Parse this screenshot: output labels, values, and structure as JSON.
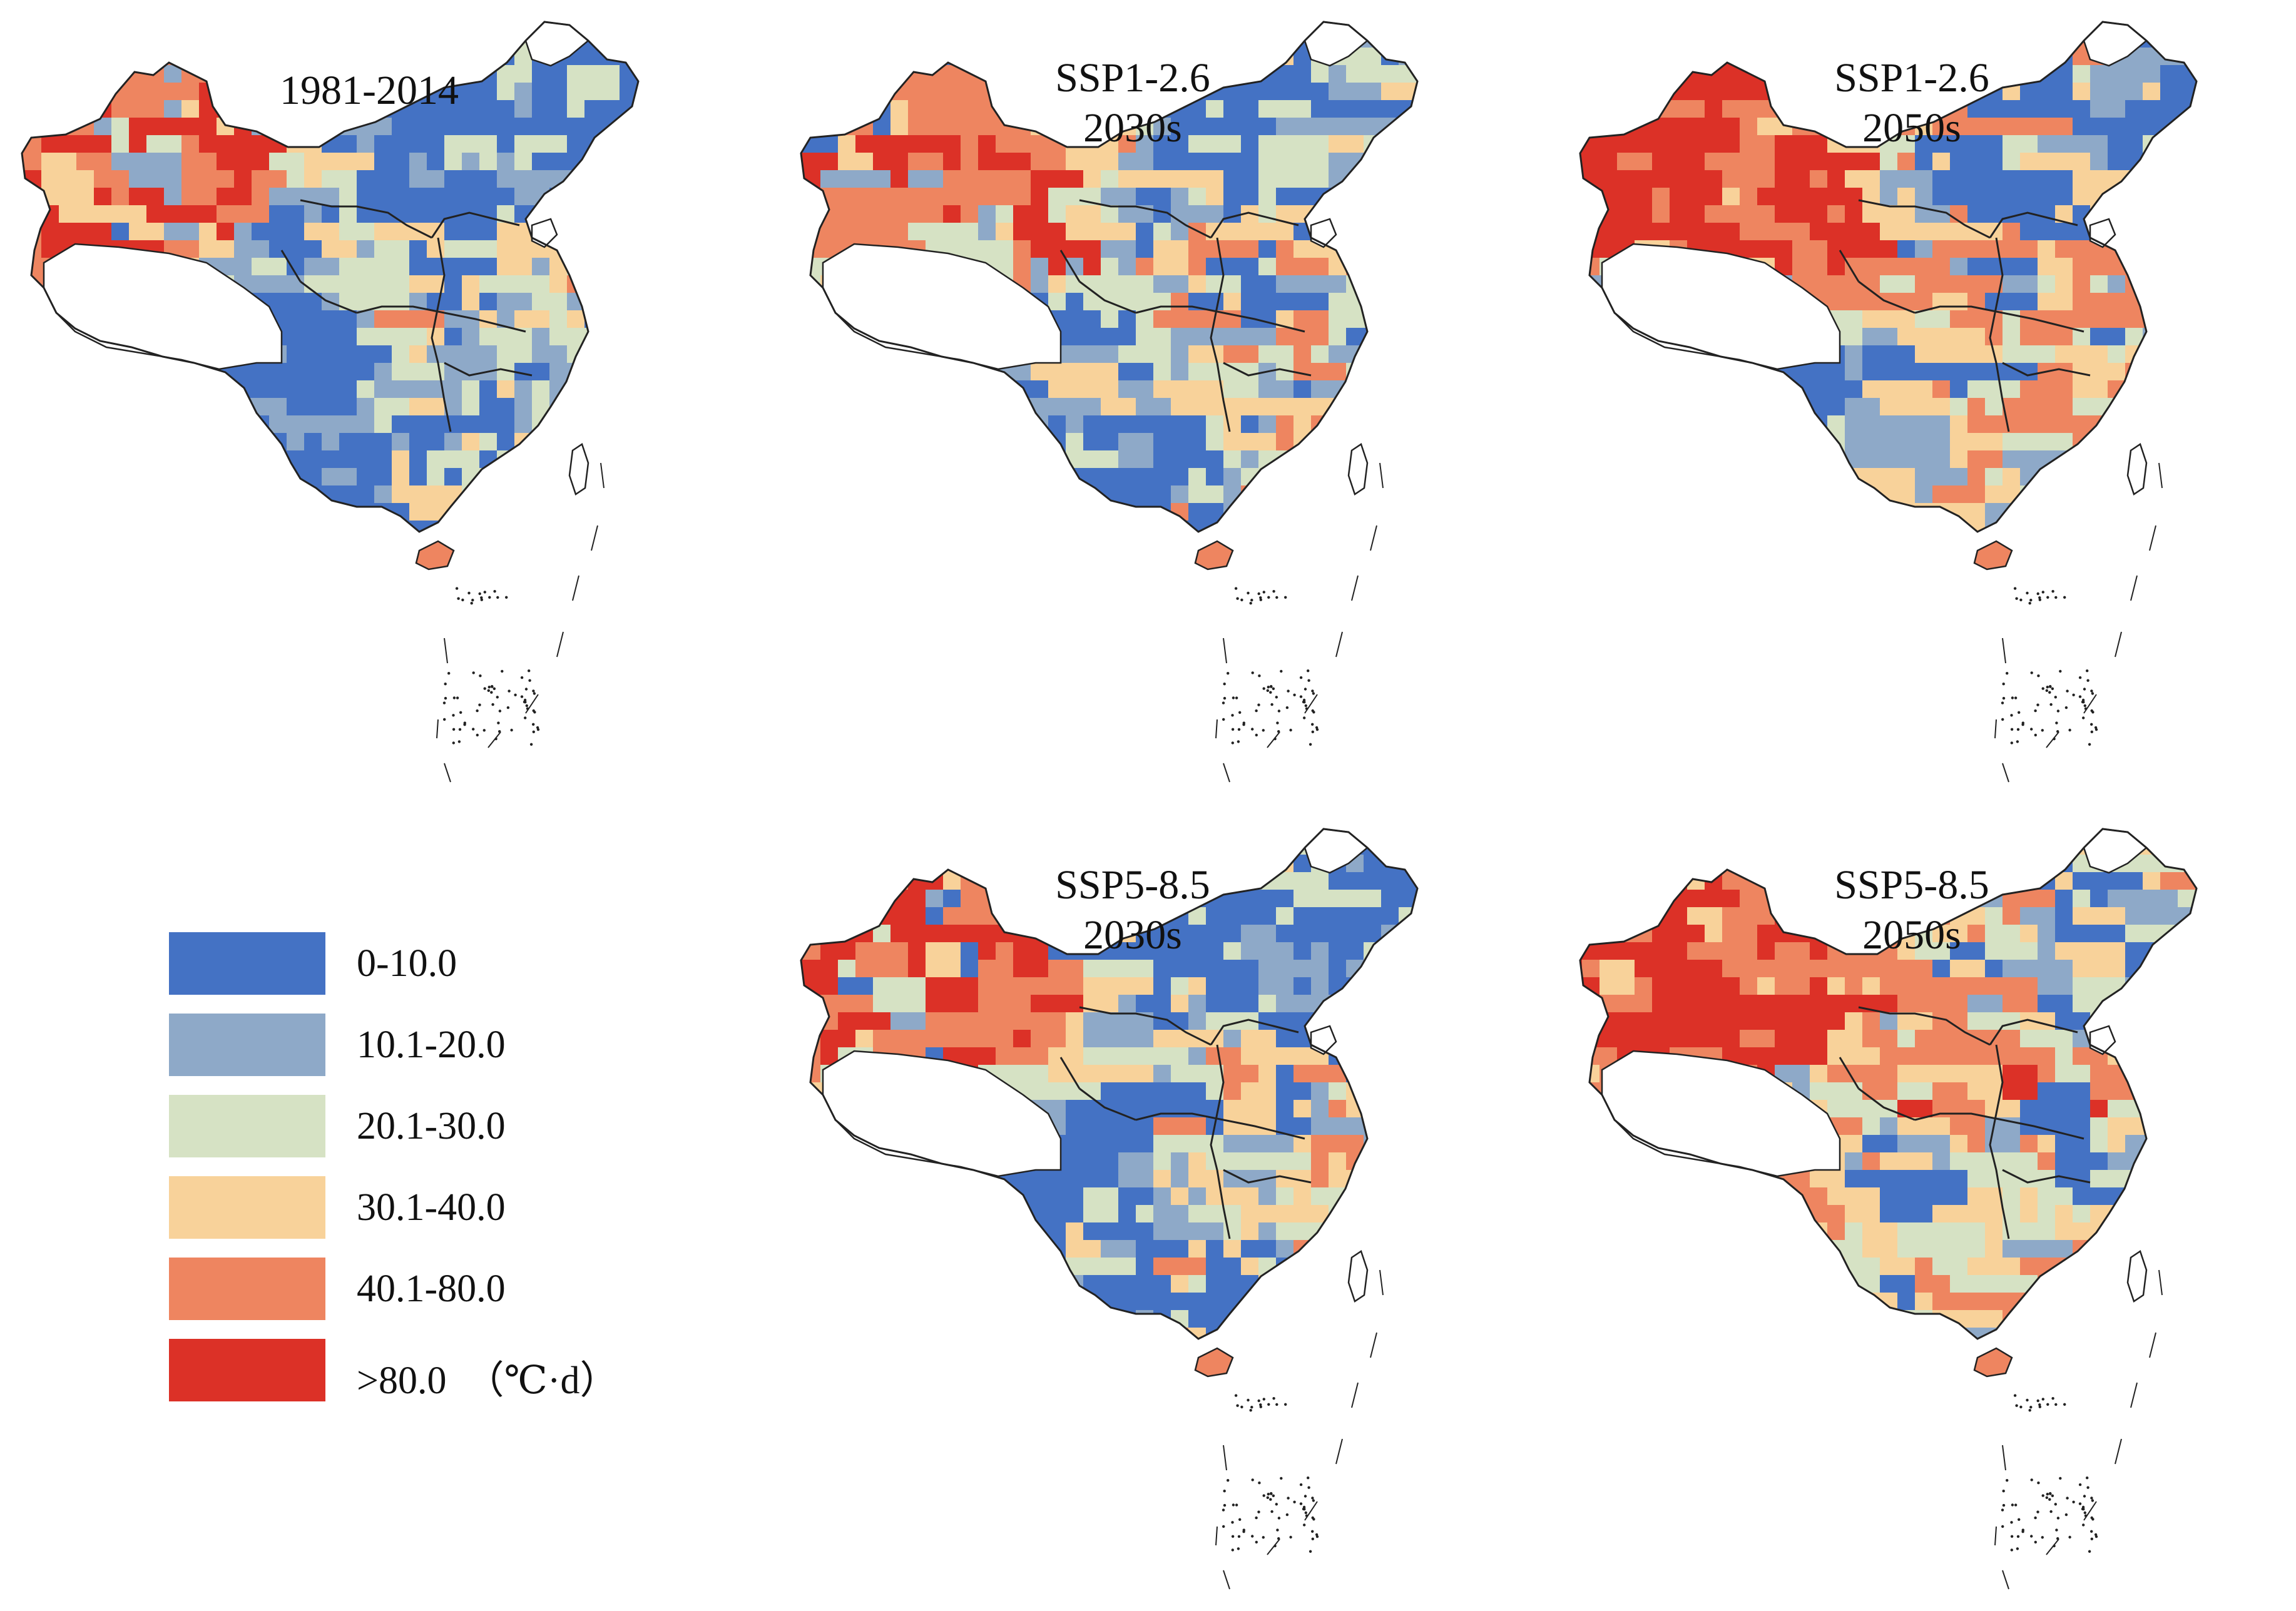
{
  "colors": {
    "class_0": "#4472C4",
    "class_1": "#8EA9C8",
    "class_2": "#D6E2C4",
    "class_3": "#F8D29A",
    "class_4": "#EE8560",
    "class_5": "#DC3127",
    "outline": "#222222",
    "empty_region": "#ffffff"
  },
  "panels": [
    {
      "title": "1981-2014"
    },
    {
      "title": "SSP1-2.6\n2030s"
    },
    {
      "title": "SSP1-2.6\n2050s"
    },
    {
      "title": "SSP5-8.5\n2030s"
    },
    {
      "title": "SSP5-8.5\n2050s"
    }
  ],
  "legend": {
    "items": [
      {
        "label": "0-10.0",
        "color": "#4472C4"
      },
      {
        "label": "10.1-20.0",
        "color": "#8EA9C8"
      },
      {
        "label": "20.1-30.0",
        "color": "#D6E2C4"
      },
      {
        "label": "30.1-40.0",
        "color": "#F8D29A"
      },
      {
        "label": "40.1-80.0",
        "color": "#EE8560"
      },
      {
        "label": ">80.0",
        "color": "#DC3127"
      }
    ],
    "unit": "（℃·d）"
  }
}
